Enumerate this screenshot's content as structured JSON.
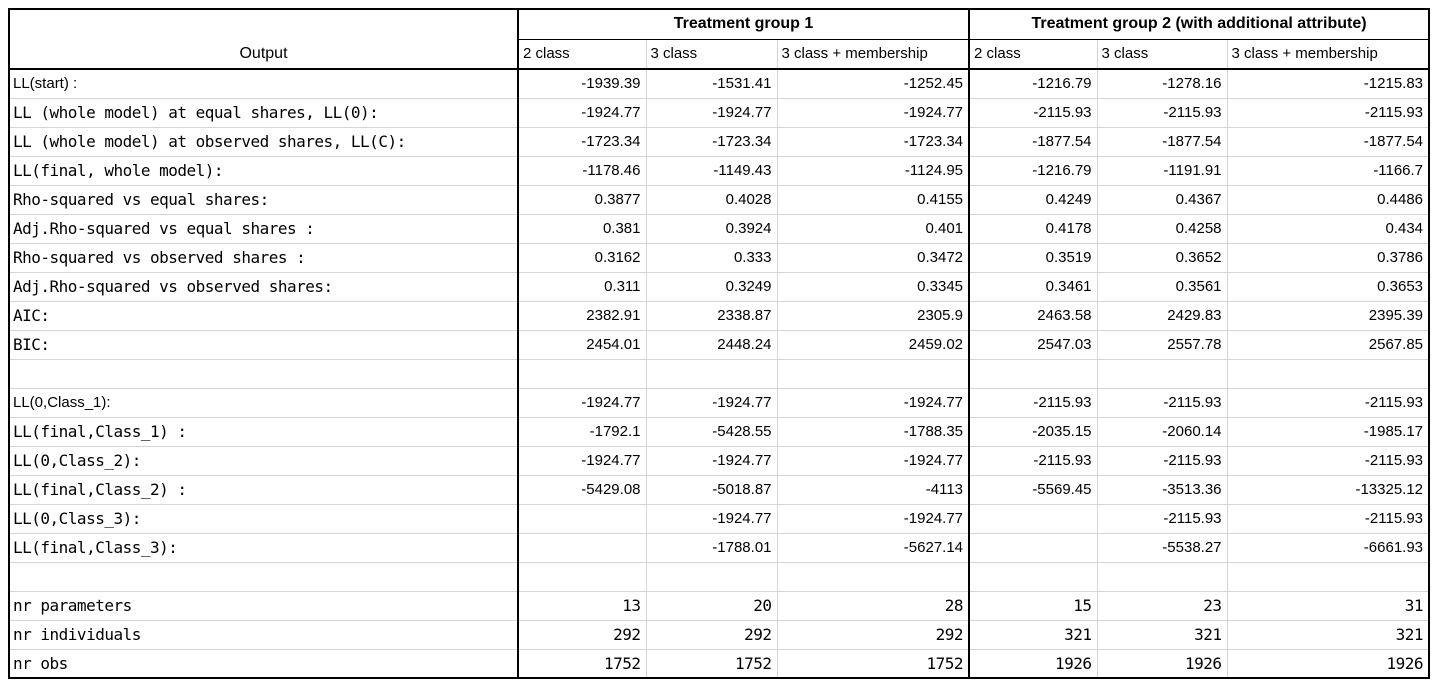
{
  "colors": {
    "background": "#ffffff",
    "border_dark": "#000000",
    "gridline": "#d4d4d4",
    "text": "#000000"
  },
  "table": {
    "header": {
      "output_label": "Output",
      "group1_title": "Treatment group 1",
      "group2_title": "Treatment group 2 (with additional attribute)",
      "subheaders": [
        "2 class",
        "3 class",
        "3 class + membership",
        "2 class",
        "3 class",
        "3 class + membership"
      ]
    },
    "rows": [
      {
        "label": "LL(start) :",
        "label_font": "sans",
        "value_font": "sans",
        "values": [
          "-1939.39",
          "-1531.41",
          "-1252.45",
          "-1216.79",
          "-1278.16",
          "-1215.83"
        ]
      },
      {
        "label": "LL (whole model) at equal shares, LL(0):",
        "label_font": "mono",
        "value_font": "sans",
        "values": [
          "-1924.77",
          "-1924.77",
          "-1924.77",
          "-2115.93",
          "-2115.93",
          "-2115.93"
        ]
      },
      {
        "label": "LL (whole model) at observed shares, LL(C):",
        "label_font": "mono",
        "value_font": "sans",
        "values": [
          "-1723.34",
          "-1723.34",
          "-1723.34",
          "-1877.54",
          "-1877.54",
          "-1877.54"
        ]
      },
      {
        "label": "LL(final, whole model):",
        "label_font": "mono",
        "value_font": "sans",
        "values": [
          "-1178.46",
          "-1149.43",
          "-1124.95",
          "-1216.79",
          "-1191.91",
          "-1166.7"
        ]
      },
      {
        "label": "Rho-squared vs equal shares:",
        "label_font": "mono",
        "value_font": "sans",
        "values": [
          "0.3877",
          "0.4028",
          "0.4155",
          "0.4249",
          "0.4367",
          "0.4486"
        ]
      },
      {
        "label": "Adj.Rho-squared vs equal shares :",
        "label_font": "mono",
        "value_font": "sans",
        "values": [
          "0.381",
          "0.3924",
          "0.401",
          "0.4178",
          "0.4258",
          "0.434"
        ]
      },
      {
        "label": "Rho-squared vs observed shares :",
        "label_font": "mono",
        "value_font": "sans",
        "values": [
          "0.3162",
          "0.333",
          "0.3472",
          "0.3519",
          "0.3652",
          "0.3786"
        ]
      },
      {
        "label": "Adj.Rho-squared vs observed shares:",
        "label_font": "mono",
        "value_font": "sans",
        "values": [
          "0.311",
          "0.3249",
          "0.3345",
          "0.3461",
          "0.3561",
          "0.3653"
        ]
      },
      {
        "label": "AIC:",
        "label_font": "mono",
        "value_font": "sans",
        "values": [
          "2382.91",
          "2338.87",
          "2305.9",
          "2463.58",
          "2429.83",
          "2395.39"
        ]
      },
      {
        "label": "BIC:",
        "label_font": "mono",
        "value_font": "sans",
        "values": [
          "2454.01",
          "2448.24",
          "2459.02",
          "2547.03",
          "2557.78",
          "2567.85"
        ]
      },
      {
        "label": "",
        "label_font": "sans",
        "value_font": "sans",
        "values": [
          "",
          "",
          "",
          "",
          "",
          ""
        ]
      },
      {
        "label": "LL(0,Class_1):",
        "label_font": "sans",
        "value_font": "sans",
        "values": [
          "-1924.77",
          "-1924.77",
          "-1924.77",
          "-2115.93",
          "-2115.93",
          "-2115.93"
        ]
      },
      {
        "label": "LL(final,Class_1) :",
        "label_font": "mono",
        "value_font": "sans",
        "values": [
          "-1792.1",
          "-5428.55",
          "-1788.35",
          "-2035.15",
          "-2060.14",
          "-1985.17"
        ]
      },
      {
        "label": "LL(0,Class_2):",
        "label_font": "mono",
        "value_font": "sans",
        "values": [
          "-1924.77",
          "-1924.77",
          "-1924.77",
          "-2115.93",
          "-2115.93",
          "-2115.93"
        ]
      },
      {
        "label": "LL(final,Class_2) :",
        "label_font": "mono",
        "value_font": "sans",
        "values": [
          "-5429.08",
          "-5018.87",
          "-4113",
          "-5569.45",
          "-3513.36",
          "-13325.12"
        ]
      },
      {
        "label": "LL(0,Class_3):",
        "label_font": "mono",
        "value_font": "sans",
        "values": [
          "",
          "-1924.77",
          "-1924.77",
          "",
          "-2115.93",
          "-2115.93"
        ]
      },
      {
        "label": "LL(final,Class_3):",
        "label_font": "mono",
        "value_font": "sans",
        "values": [
          "",
          "-1788.01",
          "-5627.14",
          "",
          "-5538.27",
          "-6661.93"
        ]
      },
      {
        "label": "",
        "label_font": "sans",
        "value_font": "sans",
        "values": [
          "",
          "",
          "",
          "",
          "",
          ""
        ]
      },
      {
        "label": "nr parameters",
        "label_font": "mono",
        "value_font": "mono",
        "values": [
          "13",
          "20",
          "28",
          "15",
          "23",
          "31"
        ]
      },
      {
        "label": "nr individuals",
        "label_font": "mono",
        "value_font": "mono",
        "values": [
          "292",
          "292",
          "292",
          "321",
          "321",
          "321"
        ]
      },
      {
        "label": "nr obs",
        "label_font": "mono",
        "value_font": "mono",
        "values": [
          "1752",
          "1752",
          "1752",
          "1926",
          "1926",
          "1926"
        ]
      }
    ]
  }
}
